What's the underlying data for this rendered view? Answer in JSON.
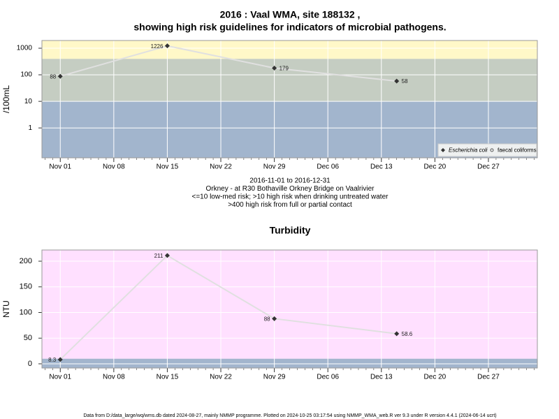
{
  "chart_data": [
    {
      "type": "line",
      "title": [
        "2016 : Vaal WMA, site 188132 ,",
        "showing high risk guidelines for indicators of microbial pathogens."
      ],
      "y_label": "/100mL",
      "log_y": true,
      "ylim": [
        0.075,
        1950
      ],
      "yticks": [
        1,
        10,
        100,
        1000
      ],
      "xlim": [
        "2016-11-01",
        "2016-12-31"
      ],
      "x_expand": 0.04,
      "xticks": [
        {
          "value": "2016-11-01",
          "label": "Nov 01"
        },
        {
          "value": "2016-11-08",
          "label": "Nov 08"
        },
        {
          "value": "2016-11-15",
          "label": "Nov 15"
        },
        {
          "value": "2016-11-22",
          "label": "Nov 22"
        },
        {
          "value": "2016-11-29",
          "label": "Nov 29"
        },
        {
          "value": "2016-12-06",
          "label": "Dec 06"
        },
        {
          "value": "2016-12-13",
          "label": "Dec 13"
        },
        {
          "value": "2016-12-20",
          "label": "Dec 20"
        },
        {
          "value": "2016-12-27",
          "label": "Dec 27"
        }
      ],
      "band_breaks": [
        10,
        400
      ],
      "band_colors": [
        "#a2b5cd",
        "#c5cdc2",
        "#fff8c8"
      ],
      "grid": true,
      "x": [
        "2016-11-01",
        "2016-11-15",
        "2016-11-29",
        "2016-12-15"
      ],
      "series": [
        {
          "name": "Escherichia coli",
          "color": "#333333",
          "line_color": "#e0e0e0",
          "values": [
            88,
            1226,
            179,
            58
          ]
        },
        {
          "name": "faecal coliforms",
          "color": "#555555",
          "values": [
            null,
            null,
            null,
            null
          ]
        }
      ],
      "legend": "bottom-right",
      "notes": [
        "2016-11-01 to 2016-12-31",
        "Orkney - at R30 Bothaville Orkney Bridge on Vaalrivier",
        "<=10 low-med risk; >10 high risk when drinking untreated water",
        ">400 high risk from full or partial contact"
      ]
    },
    {
      "type": "line",
      "title": [
        "Turbidity"
      ],
      "y_label": "NTU",
      "log_y": false,
      "ylim": [
        -8.2,
        221.8
      ],
      "yticks": [
        0,
        50,
        100,
        150,
        200
      ],
      "xlim": [
        "2016-11-01",
        "2016-12-31"
      ],
      "x_expand": 0.04,
      "xticks": [
        {
          "value": "2016-11-01",
          "label": "Nov 01"
        },
        {
          "value": "2016-11-08",
          "label": "Nov 08"
        },
        {
          "value": "2016-11-15",
          "label": "Nov 15"
        },
        {
          "value": "2016-11-22",
          "label": "Nov 22"
        },
        {
          "value": "2016-11-29",
          "label": "Nov 29"
        },
        {
          "value": "2016-12-06",
          "label": "Dec 06"
        },
        {
          "value": "2016-12-13",
          "label": "Dec 13"
        },
        {
          "value": "2016-12-20",
          "label": "Dec 20"
        },
        {
          "value": "2016-12-27",
          "label": "Dec 27"
        }
      ],
      "band_breaks": [
        10
      ],
      "band_colors": [
        "#a2b5cd",
        "#ffe0ff"
      ],
      "grid": true,
      "x": [
        "2016-11-01",
        "2016-11-15",
        "2016-11-29",
        "2016-12-15"
      ],
      "series": [
        {
          "name": "Turbidity",
          "color": "#333333",
          "line_color": "#e0e0e0",
          "values": [
            8.3,
            211,
            88,
            58.6
          ]
        }
      ]
    }
  ],
  "footer": "Data from D:/data_large/wq/wms.db dated 2024-08-27, mainly NMMP programme. Plotted on 2024-10-25 03:17:54 using NMMP_WMA_web.R ver 9.3 under R version 4.4.1 (2024-06-14 ucrt)"
}
